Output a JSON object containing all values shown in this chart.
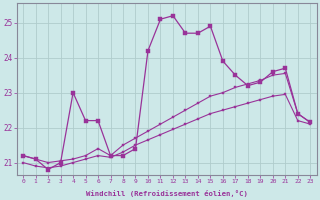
{
  "xlabel": "Windchill (Refroidissement éolien,°C)",
  "bg_color": "#cde8e8",
  "grid_color": "#b0cccc",
  "line_color": "#993399",
  "x_hours": [
    0,
    1,
    2,
    3,
    4,
    5,
    6,
    7,
    8,
    9,
    10,
    11,
    12,
    13,
    14,
    15,
    16,
    17,
    18,
    19,
    20,
    21,
    22,
    23
  ],
  "y_main": [
    21.2,
    21.1,
    20.8,
    21.0,
    23.0,
    22.2,
    22.2,
    21.2,
    21.2,
    21.4,
    24.2,
    25.1,
    25.2,
    24.7,
    24.7,
    24.9,
    23.9,
    23.5,
    23.2,
    23.3,
    23.6,
    23.7,
    22.4,
    22.15
  ],
  "y_line2": [
    21.2,
    21.1,
    21.0,
    21.05,
    21.1,
    21.2,
    21.4,
    21.2,
    21.5,
    21.7,
    21.9,
    22.1,
    22.3,
    22.5,
    22.7,
    22.9,
    23.0,
    23.15,
    23.25,
    23.35,
    23.5,
    23.55,
    22.4,
    22.15
  ],
  "y_line3": [
    21.0,
    20.9,
    20.85,
    20.9,
    21.0,
    21.1,
    21.2,
    21.15,
    21.3,
    21.5,
    21.65,
    21.8,
    21.95,
    22.1,
    22.25,
    22.4,
    22.5,
    22.6,
    22.7,
    22.8,
    22.9,
    22.95,
    22.2,
    22.1
  ],
  "ylim_min": 20.65,
  "ylim_max": 25.55,
  "xlim_min": -0.5,
  "xlim_max": 23.5,
  "yticks": [
    21,
    22,
    23,
    24,
    25
  ],
  "xticks": [
    0,
    1,
    2,
    3,
    4,
    5,
    6,
    7,
    8,
    9,
    10,
    11,
    12,
    13,
    14,
    15,
    16,
    17,
    18,
    19,
    20,
    21,
    22,
    23
  ]
}
